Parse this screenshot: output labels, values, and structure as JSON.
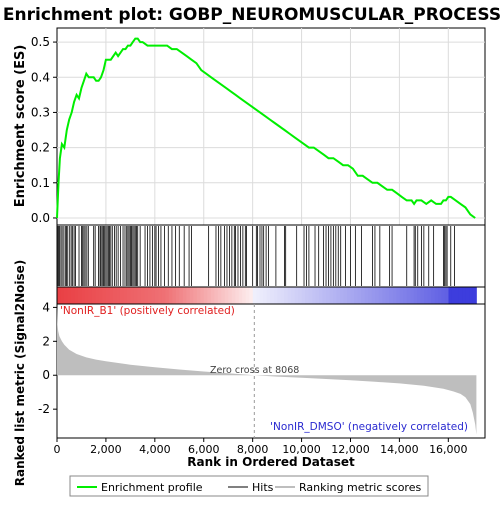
{
  "chart_data": {
    "type": "line",
    "title": "Enrichment plot: GOBP_NEUROMUSCULAR_PROCESS",
    "es_panel": {
      "ylabel": "Enrichment score (ES)",
      "ylim": [
        -0.02,
        0.54
      ],
      "yticks": [
        0.0,
        0.1,
        0.2,
        0.3,
        0.4,
        0.5
      ],
      "ytick_labels": [
        "0.0",
        "0.1",
        "0.2",
        "0.3",
        "0.4",
        "0.5"
      ],
      "grid": true,
      "line_color": "#00ee00",
      "series": [
        {
          "name": "Enrichment profile",
          "x": [
            0,
            60,
            120,
            200,
            300,
            400,
            500,
            600,
            700,
            800,
            900,
            1000,
            1100,
            1200,
            1300,
            1400,
            1500,
            1600,
            1700,
            1800,
            1900,
            2000,
            2100,
            2200,
            2300,
            2400,
            2500,
            2600,
            2700,
            2800,
            2900,
            3000,
            3100,
            3200,
            3300,
            3400,
            3500,
            3700,
            3900,
            4100,
            4300,
            4500,
            4700,
            4900,
            5100,
            5300,
            5500,
            5700,
            5900,
            6100,
            6300,
            6500,
            6700,
            6900,
            7100,
            7300,
            7500,
            7700,
            7900,
            8100,
            8300,
            8500,
            8700,
            8900,
            9100,
            9300,
            9500,
            9700,
            9900,
            10100,
            10300,
            10500,
            10700,
            10900,
            11100,
            11300,
            11500,
            11700,
            11900,
            12100,
            12300,
            12500,
            12700,
            12900,
            13100,
            13300,
            13500,
            13700,
            13900,
            14100,
            14300,
            14500,
            14600,
            14700,
            14900,
            15100,
            15300,
            15500,
            15700,
            15800,
            15900,
            16000,
            16100,
            16300,
            16500,
            16700,
            16900,
            17100
          ],
          "y": [
            0.0,
            0.1,
            0.17,
            0.21,
            0.2,
            0.25,
            0.28,
            0.3,
            0.33,
            0.35,
            0.34,
            0.37,
            0.39,
            0.41,
            0.4,
            0.4,
            0.4,
            0.39,
            0.39,
            0.4,
            0.42,
            0.45,
            0.45,
            0.45,
            0.46,
            0.47,
            0.46,
            0.47,
            0.48,
            0.48,
            0.49,
            0.49,
            0.5,
            0.51,
            0.51,
            0.5,
            0.5,
            0.49,
            0.49,
            0.49,
            0.49,
            0.49,
            0.48,
            0.48,
            0.47,
            0.46,
            0.45,
            0.44,
            0.42,
            0.41,
            0.4,
            0.39,
            0.38,
            0.37,
            0.36,
            0.35,
            0.34,
            0.33,
            0.32,
            0.31,
            0.3,
            0.29,
            0.28,
            0.27,
            0.26,
            0.25,
            0.24,
            0.23,
            0.22,
            0.21,
            0.2,
            0.2,
            0.19,
            0.18,
            0.17,
            0.17,
            0.16,
            0.15,
            0.15,
            0.14,
            0.12,
            0.12,
            0.11,
            0.1,
            0.1,
            0.09,
            0.08,
            0.08,
            0.07,
            0.06,
            0.05,
            0.05,
            0.04,
            0.05,
            0.05,
            0.04,
            0.05,
            0.04,
            0.04,
            0.05,
            0.05,
            0.06,
            0.06,
            0.05,
            0.04,
            0.03,
            0.01,
            0.0
          ]
        }
      ]
    },
    "hits": [
      20,
      60,
      100,
      160,
      210,
      280,
      340,
      390,
      440,
      520,
      580,
      640,
      700,
      760,
      900,
      1000,
      1050,
      1100,
      1150,
      1220,
      1280,
      1500,
      1560,
      1700,
      1760,
      1800,
      1850,
      1900,
      1950,
      2000,
      2050,
      2100,
      2150,
      2200,
      2260,
      2350,
      2420,
      2500,
      2600,
      2700,
      2780,
      2850,
      2900,
      2950,
      3000,
      3050,
      3100,
      3150,
      3200,
      3250,
      3300,
      3400,
      3600,
      3700,
      3800,
      3900,
      4000,
      4050,
      4150,
      4250,
      4400,
      4550,
      4700,
      4850,
      5000,
      5200,
      5400,
      5500,
      6200,
      6500,
      6600,
      6700,
      6850,
      6950,
      7050,
      7150,
      7250,
      7300,
      7400,
      7500,
      7600,
      7700,
      7750,
      8000,
      8150,
      8200,
      8300,
      8380,
      8450,
      8550,
      8650,
      8950,
      9300,
      9350,
      9800,
      10100,
      10200,
      10300,
      10550,
      10700,
      10900,
      11000,
      11100,
      11200,
      11300,
      11400,
      11500,
      11600,
      11800,
      12000,
      12200,
      12450,
      12900,
      13000,
      13200,
      13600,
      13700,
      14300,
      14600,
      14650,
      14750,
      14900,
      15000,
      15200,
      15400,
      15800,
      15850,
      15900,
      15950,
      16100,
      16250
    ],
    "rank_axis": {
      "xlabel": "Rank in Ordered Dataset",
      "xlim": [
        0,
        17500
      ],
      "xticks": [
        0,
        2000,
        4000,
        6000,
        8000,
        10000,
        12000,
        14000,
        16000
      ],
      "xtick_labels": [
        "0",
        "2,000",
        "4,000",
        "6,000",
        "8,000",
        "10,000",
        "12,000",
        "14,000",
        "16,000"
      ],
      "n_genes": 17150
    },
    "metric_panel": {
      "ylabel": "Ranked list metric (Signal2Noise)",
      "ylim": [
        -3.7,
        4.2
      ],
      "yticks": [
        -2,
        0,
        2,
        4
      ],
      "ytick_labels": [
        "-2",
        "0",
        "2",
        "4"
      ],
      "fill_color": "#bebebe",
      "x": [
        0,
        20,
        50,
        100,
        200,
        300,
        500,
        800,
        1200,
        1600,
        2000,
        3000,
        4000,
        5000,
        6000,
        7000,
        8068,
        9000,
        10000,
        11000,
        12000,
        13000,
        14000,
        15000,
        15800,
        16200,
        16500,
        16700,
        16900,
        17000,
        17100,
        17150
      ],
      "y": [
        4.1,
        3.0,
        2.6,
        2.3,
        2.0,
        1.8,
        1.5,
        1.25,
        1.05,
        0.92,
        0.82,
        0.62,
        0.47,
        0.34,
        0.22,
        0.12,
        0.0,
        -0.08,
        -0.15,
        -0.22,
        -0.3,
        -0.38,
        -0.48,
        -0.62,
        -0.8,
        -0.95,
        -1.1,
        -1.3,
        -1.7,
        -2.2,
        -2.9,
        -3.5
      ],
      "zero_cross_label": "Zero cross at 8068",
      "zero_cross_rank": 8068,
      "positive_label": "'NonIR_B1' (positively correlated)",
      "negative_label": "'NonIR_DMSO' (negatively correlated)",
      "positive_color": "#e8353a",
      "negative_color": "#3d3ddd"
    },
    "legend": {
      "placement": "bottom",
      "entries": [
        {
          "label": "Enrichment profile",
          "color": "#00ee00"
        },
        {
          "label": "Hits",
          "color": "#000000"
        },
        {
          "label": "Ranking metric scores",
          "color": "#bebebe"
        }
      ]
    }
  }
}
